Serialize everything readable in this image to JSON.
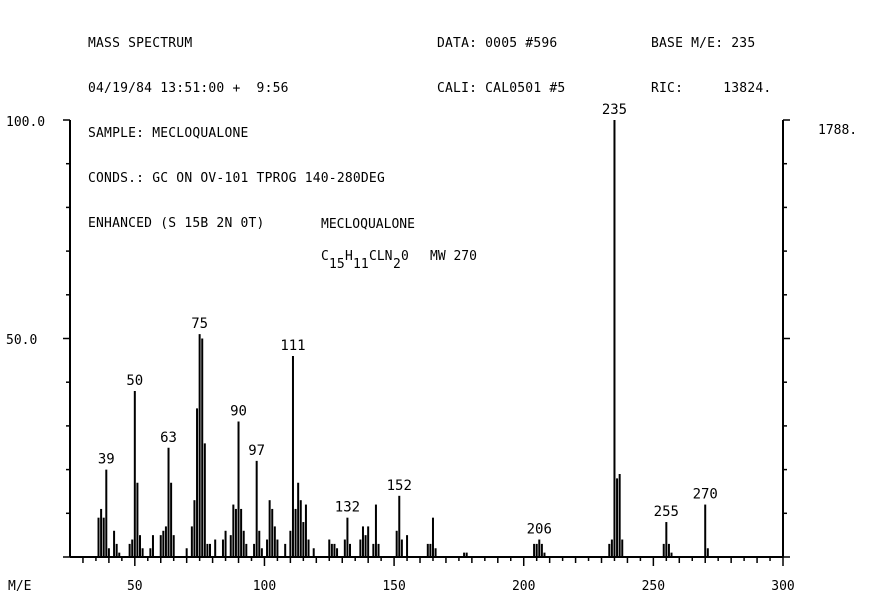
{
  "header": {
    "left": [
      "MASS SPECTRUM",
      "04/19/84 13:51:00 +  9:56",
      "SAMPLE: MECLOQUALONE",
      "CONDS.: GC ON OV-101 TPROG 140-280DEG",
      "ENHANCED (S 15B 2N 0T)"
    ],
    "mid": [
      "DATA: 0005 #596",
      "CALI: CAL0501 #5"
    ],
    "right": [
      "BASE M/E: 235",
      "RIC:     13824."
    ]
  },
  "annotation": {
    "compound": "MECLOQUALONE",
    "formula_parts": [
      "C",
      "15",
      "H",
      "11",
      "CLN",
      "2",
      "0"
    ],
    "mw": "MW 270"
  },
  "chart_data": {
    "type": "bar",
    "title": "",
    "xlabel": "M/E",
    "ylabel": "",
    "xlim": [
      25,
      300
    ],
    "ylim": [
      0,
      100
    ],
    "y_tick_labels": [
      "100.0",
      "50.0"
    ],
    "right_axis_label": "1788.",
    "x_tick_labels": [
      "50",
      "100",
      "150",
      "200",
      "250",
      "300"
    ],
    "peak_labels": [
      "39",
      "50",
      "63",
      "75",
      "90",
      "97",
      "111",
      "132",
      "152",
      "206",
      "235",
      "255",
      "270"
    ],
    "peaks": [
      {
        "mz": 36,
        "i": 9
      },
      {
        "mz": 37,
        "i": 11
      },
      {
        "mz": 38,
        "i": 9
      },
      {
        "mz": 39,
        "i": 20
      },
      {
        "mz": 40,
        "i": 2
      },
      {
        "mz": 42,
        "i": 6
      },
      {
        "mz": 43,
        "i": 3
      },
      {
        "mz": 44,
        "i": 1
      },
      {
        "mz": 48,
        "i": 3
      },
      {
        "mz": 49,
        "i": 4
      },
      {
        "mz": 50,
        "i": 38
      },
      {
        "mz": 51,
        "i": 17
      },
      {
        "mz": 52,
        "i": 5
      },
      {
        "mz": 53,
        "i": 2
      },
      {
        "mz": 56,
        "i": 2
      },
      {
        "mz": 57,
        "i": 5
      },
      {
        "mz": 60,
        "i": 5
      },
      {
        "mz": 61,
        "i": 6
      },
      {
        "mz": 62,
        "i": 7
      },
      {
        "mz": 63,
        "i": 25
      },
      {
        "mz": 64,
        "i": 17
      },
      {
        "mz": 65,
        "i": 5
      },
      {
        "mz": 70,
        "i": 2
      },
      {
        "mz": 72,
        "i": 7
      },
      {
        "mz": 73,
        "i": 13
      },
      {
        "mz": 74,
        "i": 34
      },
      {
        "mz": 75,
        "i": 51
      },
      {
        "mz": 76,
        "i": 50
      },
      {
        "mz": 77,
        "i": 26
      },
      {
        "mz": 78,
        "i": 3
      },
      {
        "mz": 79,
        "i": 3
      },
      {
        "mz": 81,
        "i": 4
      },
      {
        "mz": 84,
        "i": 4
      },
      {
        "mz": 85,
        "i": 6
      },
      {
        "mz": 87,
        "i": 5
      },
      {
        "mz": 88,
        "i": 12
      },
      {
        "mz": 89,
        "i": 11
      },
      {
        "mz": 90,
        "i": 31
      },
      {
        "mz": 91,
        "i": 11
      },
      {
        "mz": 92,
        "i": 6
      },
      {
        "mz": 93,
        "i": 3
      },
      {
        "mz": 96,
        "i": 3
      },
      {
        "mz": 97,
        "i": 22
      },
      {
        "mz": 98,
        "i": 6
      },
      {
        "mz": 99,
        "i": 2
      },
      {
        "mz": 101,
        "i": 4
      },
      {
        "mz": 102,
        "i": 13
      },
      {
        "mz": 103,
        "i": 11
      },
      {
        "mz": 104,
        "i": 7
      },
      {
        "mz": 105,
        "i": 4
      },
      {
        "mz": 108,
        "i": 3
      },
      {
        "mz": 110,
        "i": 6
      },
      {
        "mz": 111,
        "i": 46
      },
      {
        "mz": 112,
        "i": 11
      },
      {
        "mz": 113,
        "i": 17
      },
      {
        "mz": 114,
        "i": 13
      },
      {
        "mz": 115,
        "i": 8
      },
      {
        "mz": 116,
        "i": 12
      },
      {
        "mz": 117,
        "i": 4
      },
      {
        "mz": 119,
        "i": 2
      },
      {
        "mz": 125,
        "i": 4
      },
      {
        "mz": 126,
        "i": 3
      },
      {
        "mz": 127,
        "i": 3
      },
      {
        "mz": 128,
        "i": 2
      },
      {
        "mz": 131,
        "i": 4
      },
      {
        "mz": 132,
        "i": 9
      },
      {
        "mz": 133,
        "i": 3
      },
      {
        "mz": 137,
        "i": 4
      },
      {
        "mz": 138,
        "i": 7
      },
      {
        "mz": 139,
        "i": 5
      },
      {
        "mz": 140,
        "i": 7
      },
      {
        "mz": 142,
        "i": 3
      },
      {
        "mz": 143,
        "i": 12
      },
      {
        "mz": 144,
        "i": 3
      },
      {
        "mz": 151,
        "i": 6
      },
      {
        "mz": 152,
        "i": 14
      },
      {
        "mz": 153,
        "i": 4
      },
      {
        "mz": 155,
        "i": 5
      },
      {
        "mz": 163,
        "i": 3
      },
      {
        "mz": 164,
        "i": 3
      },
      {
        "mz": 165,
        "i": 9
      },
      {
        "mz": 166,
        "i": 2
      },
      {
        "mz": 177,
        "i": 1
      },
      {
        "mz": 178,
        "i": 1
      },
      {
        "mz": 204,
        "i": 3
      },
      {
        "mz": 205,
        "i": 3
      },
      {
        "mz": 206,
        "i": 4
      },
      {
        "mz": 207,
        "i": 3
      },
      {
        "mz": 208,
        "i": 1
      },
      {
        "mz": 233,
        "i": 3
      },
      {
        "mz": 234,
        "i": 4
      },
      {
        "mz": 235,
        "i": 100
      },
      {
        "mz": 236,
        "i": 18
      },
      {
        "mz": 237,
        "i": 19
      },
      {
        "mz": 238,
        "i": 4
      },
      {
        "mz": 254,
        "i": 3
      },
      {
        "mz": 255,
        "i": 8
      },
      {
        "mz": 256,
        "i": 3
      },
      {
        "mz": 257,
        "i": 1
      },
      {
        "mz": 270,
        "i": 12
      },
      {
        "mz": 271,
        "i": 2
      }
    ],
    "grid": false
  }
}
